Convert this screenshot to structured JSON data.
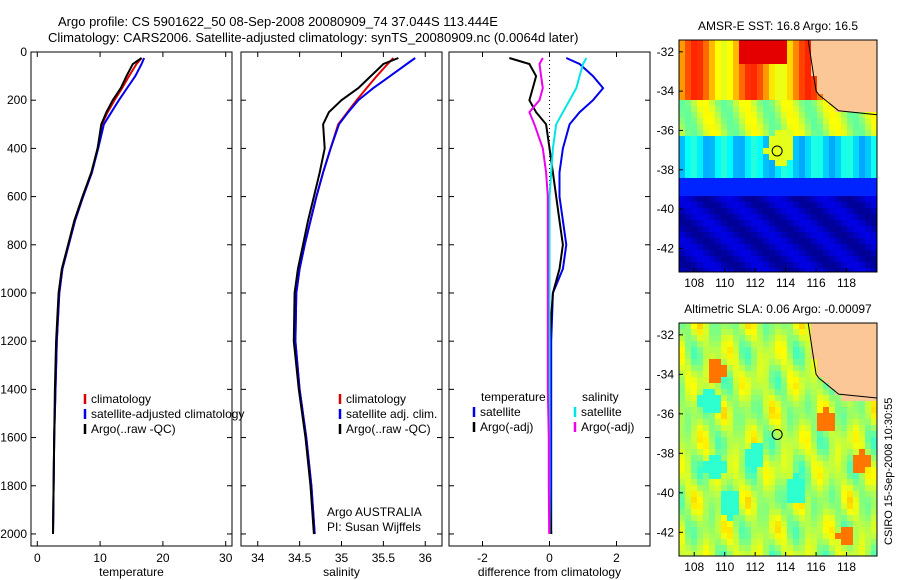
{
  "title_line1": "Argo profile: CS 5901622_50 08-Sep-2008 20080909_74 37.044S 113.444E",
  "title_line2": "Climatology: CARS2006. Satellite-adjusted climatology: synTS_20080909.nc (0.0064d later)",
  "side_label": "CSIRO 15-Sep-2008 10:30:55",
  "colors": {
    "climatology": "#dd0000",
    "satellite": "#0000ee",
    "argo": "#000000",
    "sat_salinity": "#00e5e5",
    "argo_salinity": "#ee00ee"
  },
  "chart_data": [
    {
      "type": "line",
      "xlabel": "temperature",
      "xlim": [
        -1,
        31
      ],
      "ylim": [
        2050,
        0
      ],
      "xticks": [
        0,
        10,
        20,
        30
      ],
      "yticks": [
        0,
        200,
        400,
        600,
        800,
        1000,
        1200,
        1400,
        1600,
        1800,
        2000
      ],
      "legend": [
        "climatology",
        "satellite-adjusted climatology",
        "Argo(..raw -QC)"
      ],
      "series": [
        {
          "name": "climatology",
          "color": "#dd0000",
          "x": [
            16.6,
            15.8,
            14.6,
            13.5,
            12.3,
            11.2,
            10.3,
            9.6,
            8.7,
            7.3,
            6.0,
            5.0,
            4.0,
            3.5,
            3.1,
            2.9,
            2.7,
            2.6,
            2.5
          ],
          "y": [
            25,
            50,
            100,
            150,
            200,
            250,
            300,
            400,
            500,
            600,
            700,
            800,
            900,
            1000,
            1200,
            1400,
            1600,
            1800,
            2000
          ]
        },
        {
          "name": "satellite-adjusted climatology",
          "color": "#0000ee",
          "x": [
            17.0,
            16.6,
            15.6,
            14.3,
            13.0,
            11.8,
            10.6,
            9.7,
            8.7,
            7.3,
            6.0,
            5.0,
            4.0,
            3.5,
            3.1,
            2.9,
            2.7,
            2.6,
            2.5
          ],
          "y": [
            25,
            50,
            100,
            150,
            200,
            250,
            300,
            400,
            500,
            600,
            700,
            800,
            900,
            1000,
            1200,
            1400,
            1600,
            1800,
            2000
          ]
        },
        {
          "name": "Argo(..raw -QC)",
          "color": "#000000",
          "x": [
            16.6,
            15.2,
            14.2,
            13.3,
            12.0,
            11.0,
            10.2,
            9.6,
            8.6,
            7.2,
            5.9,
            4.9,
            3.9,
            3.4,
            3.0,
            2.8,
            2.7,
            2.6,
            2.5
          ],
          "y": [
            25,
            50,
            100,
            150,
            200,
            250,
            300,
            400,
            500,
            600,
            700,
            800,
            900,
            1000,
            1200,
            1400,
            1600,
            1800,
            2000
          ]
        }
      ]
    },
    {
      "type": "line",
      "xlabel": "salinity",
      "xlim": [
        33.8,
        36.2
      ],
      "ylim": [
        2050,
        0
      ],
      "xticks": [
        34,
        34.5,
        35,
        35.5,
        36
      ],
      "yticks": [
        0,
        200,
        400,
        600,
        800,
        1000,
        1200,
        1400,
        1600,
        1800,
        2000
      ],
      "legend": [
        "climatology",
        "satellite adj. clim.",
        "Argo(..raw -QC)"
      ],
      "annotation": [
        "Argo AUSTRALIA",
        "PI: Susan Wijffels"
      ],
      "series": [
        {
          "name": "climatology",
          "color": "#dd0000",
          "x": [
            35.62,
            35.55,
            35.42,
            35.3,
            35.18,
            35.07,
            34.96,
            34.87,
            34.78,
            34.7,
            34.63,
            34.56,
            34.5,
            34.46,
            34.45,
            34.5,
            34.58,
            34.64,
            34.68
          ],
          "y": [
            25,
            50,
            100,
            150,
            200,
            250,
            300,
            400,
            500,
            600,
            700,
            800,
            900,
            1000,
            1200,
            1400,
            1600,
            1800,
            2000
          ]
        },
        {
          "name": "satellite adj. clim.",
          "color": "#0000ee",
          "x": [
            35.88,
            35.78,
            35.58,
            35.38,
            35.2,
            35.08,
            34.97,
            34.87,
            34.78,
            34.7,
            34.63,
            34.56,
            34.5,
            34.46,
            34.45,
            34.5,
            34.58,
            34.64,
            34.68
          ],
          "y": [
            25,
            50,
            100,
            150,
            200,
            250,
            300,
            400,
            500,
            600,
            700,
            800,
            900,
            1000,
            1200,
            1400,
            1600,
            1800,
            2000
          ]
        },
        {
          "name": "Argo(..raw -QC)",
          "color": "#000000",
          "x": [
            35.68,
            35.5,
            35.35,
            35.2,
            35.0,
            34.85,
            34.78,
            34.8,
            34.74,
            34.67,
            34.6,
            34.54,
            34.48,
            34.44,
            34.43,
            34.49,
            34.57,
            34.63,
            34.67
          ],
          "y": [
            25,
            50,
            100,
            150,
            200,
            250,
            300,
            400,
            500,
            600,
            700,
            800,
            900,
            1000,
            1200,
            1400,
            1600,
            1800,
            2000
          ]
        }
      ]
    },
    {
      "type": "line",
      "xlabel": "difference from climatology",
      "xlim": [
        -3,
        3
      ],
      "ylim": [
        2050,
        0
      ],
      "xticks": [
        -2,
        0,
        2
      ],
      "yticks": [
        0,
        200,
        400,
        600,
        800,
        1000,
        1200,
        1400,
        1600,
        1800,
        2000
      ],
      "legend_left": {
        "heading": "temperature",
        "items": [
          "satellite",
          "Argo(-adj)"
        ]
      },
      "legend_right": {
        "heading": "salinity",
        "items": [
          "satellite",
          "Argo(-adj)"
        ]
      },
      "series": [
        {
          "name": "temperature satellite",
          "color": "#0000ee",
          "x": [
            0.5,
            0.9,
            1.3,
            1.6,
            1.3,
            0.9,
            0.6,
            0.4,
            0.3,
            0.3,
            0.4,
            0.5,
            0.4,
            0.1,
            0.05,
            0.05,
            0.05,
            0.05,
            0.05
          ],
          "y": [
            25,
            50,
            100,
            150,
            200,
            250,
            300,
            400,
            500,
            600,
            700,
            800,
            900,
            1000,
            1200,
            1400,
            1600,
            1800,
            2000
          ]
        },
        {
          "name": "temperature Argo(-adj)",
          "color": "#000000",
          "x": [
            -1.2,
            -0.6,
            -0.4,
            -0.5,
            -0.6,
            -0.4,
            -0.1,
            0.0,
            0.1,
            0.2,
            0.3,
            0.4,
            0.3,
            0.1,
            0.0,
            0.0,
            0.0,
            0.0,
            0.05
          ],
          "y": [
            25,
            50,
            100,
            150,
            200,
            250,
            300,
            400,
            500,
            600,
            700,
            800,
            900,
            1000,
            1200,
            1400,
            1600,
            1800,
            2000
          ]
        },
        {
          "name": "salinity satellite",
          "color": "#00e5e5",
          "x": [
            1.1,
            1.0,
            0.9,
            0.8,
            0.6,
            0.4,
            0.2,
            0.1,
            0.05,
            0.0,
            0.0,
            0.0,
            0.0,
            0.0,
            0.0,
            0.0,
            0.0,
            0.0,
            0.0
          ],
          "y": [
            25,
            50,
            100,
            150,
            200,
            250,
            300,
            400,
            500,
            600,
            700,
            800,
            900,
            1000,
            1200,
            1400,
            1600,
            1800,
            2000
          ]
        },
        {
          "name": "salinity Argo(-adj)",
          "color": "#ee00ee",
          "x": [
            -0.2,
            -0.3,
            -0.25,
            -0.2,
            -0.3,
            -0.6,
            -0.45,
            -0.2,
            -0.1,
            -0.05,
            -0.05,
            -0.05,
            -0.05,
            -0.05,
            -0.05,
            -0.05,
            -0.02,
            -0.02,
            -0.01
          ],
          "y": [
            25,
            50,
            100,
            150,
            200,
            250,
            300,
            400,
            500,
            600,
            700,
            800,
            900,
            1000,
            1200,
            1400,
            1600,
            1800,
            2000
          ]
        }
      ]
    },
    {
      "type": "heatmap",
      "title": "AMSR-E SST: 16.8  Argo: 16.5",
      "xlim": [
        107,
        120
      ],
      "ylim": [
        -43.2,
        -31.4
      ],
      "xticks": [
        108,
        110,
        112,
        114,
        116,
        118
      ],
      "yticks": [
        -32,
        -34,
        -36,
        -38,
        -40,
        -42
      ],
      "marker": {
        "lon": 113.444,
        "lat": -37.044
      }
    },
    {
      "type": "heatmap",
      "title": "Altimetric SLA: 0.06  Argo: -0.00097",
      "xlim": [
        107,
        120
      ],
      "ylim": [
        -43.2,
        -31.4
      ],
      "xticks": [
        108,
        110,
        112,
        114,
        116,
        118
      ],
      "yticks": [
        -32,
        -34,
        -36,
        -38,
        -40,
        -42
      ],
      "marker": {
        "lon": 113.444,
        "lat": -37.044
      }
    }
  ]
}
